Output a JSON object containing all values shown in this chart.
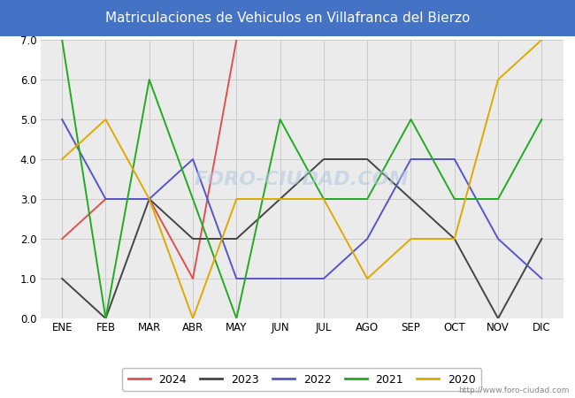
{
  "title": "Matriculaciones de Vehiculos en Villafranca del Bierzo",
  "title_bg_color": "#4472c4",
  "title_text_color": "#ffffff",
  "months": [
    "ENE",
    "FEB",
    "MAR",
    "ABR",
    "MAY",
    "JUN",
    "JUL",
    "AGO",
    "SEP",
    "OCT",
    "NOV",
    "DIC"
  ],
  "series": {
    "2024": {
      "color": "#e05050",
      "data": [
        2.0,
        3.0,
        3.0,
        1.0,
        7.0,
        null,
        null,
        null,
        null,
        null,
        null,
        null
      ]
    },
    "2023": {
      "color": "#444444",
      "data": [
        1.0,
        0.0,
        3.0,
        2.0,
        2.0,
        3.0,
        4.0,
        4.0,
        3.0,
        2.0,
        0.0,
        2.0
      ]
    },
    "2022": {
      "color": "#5555cc",
      "data": [
        5.0,
        3.0,
        3.0,
        4.0,
        1.0,
        1.0,
        1.0,
        2.0,
        4.0,
        4.0,
        2.0,
        1.0
      ]
    },
    "2021": {
      "color": "#22aa22",
      "data": [
        7.0,
        0.0,
        6.0,
        3.0,
        0.0,
        5.0,
        3.0,
        3.0,
        5.0,
        3.0,
        3.0,
        5.0
      ]
    },
    "2020": {
      "color": "#ddaa00",
      "data": [
        4.0,
        5.0,
        3.0,
        0.0,
        3.0,
        3.0,
        3.0,
        1.0,
        2.0,
        2.0,
        6.0,
        7.0
      ]
    }
  },
  "ylim": [
    0.0,
    7.0
  ],
  "yticks": [
    0.0,
    1.0,
    2.0,
    3.0,
    4.0,
    5.0,
    6.0,
    7.0
  ],
  "ytick_labels": [
    "0.0",
    "1.0",
    "2.0",
    "3.0",
    "4.0",
    "5.0",
    "6.0",
    "7.0"
  ],
  "grid_color": "#cccccc",
  "plot_bg_color": "#ebebeb",
  "watermark_text": "FORO-CIUDAD.COM",
  "watermark_url": "http://www.foro-ciudad.com",
  "legend_order": [
    "2024",
    "2023",
    "2022",
    "2021",
    "2020"
  ],
  "title_fontsize": 11,
  "tick_fontsize": 8.5,
  "linewidth": 1.4
}
